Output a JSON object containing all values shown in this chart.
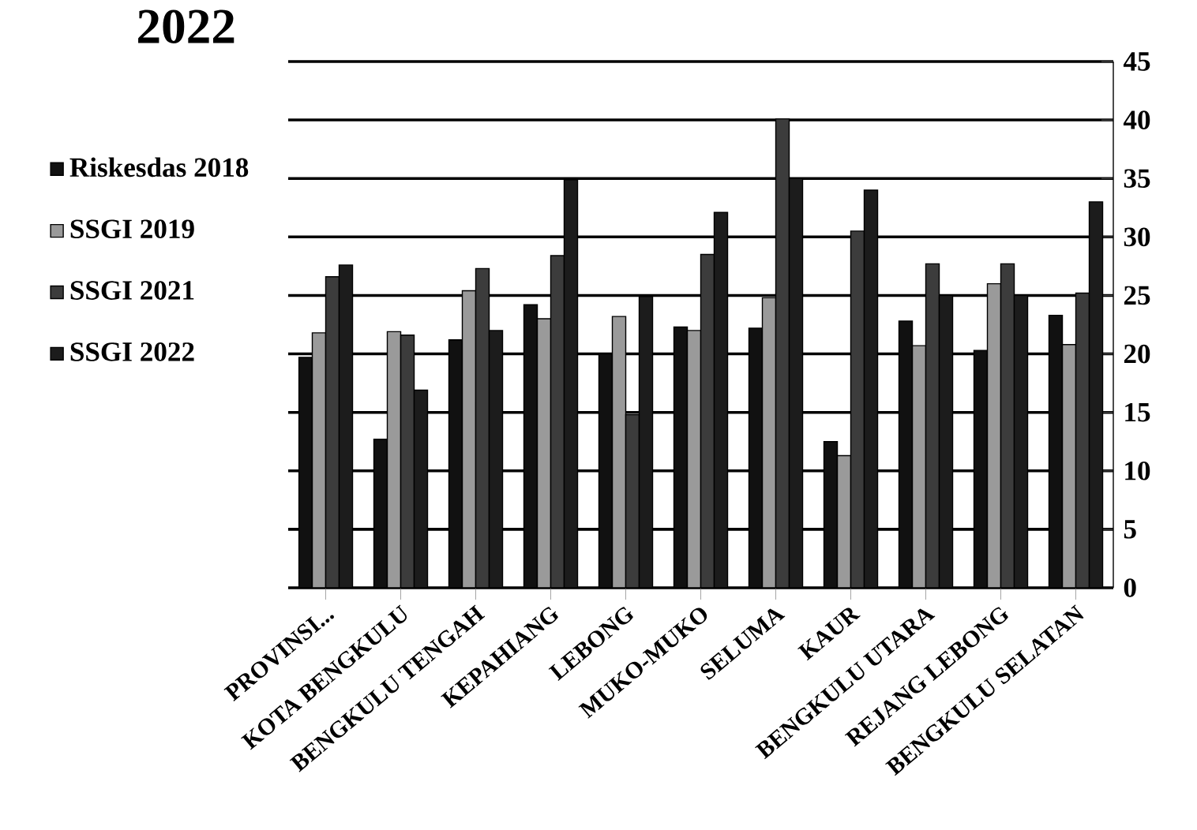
{
  "chart_data": {
    "type": "bar",
    "title": "2022",
    "categories": [
      "PROVINSI...",
      "KOTA BENGKULU",
      "BENGKULU TENGAH",
      "KEPAHIANG",
      "LEBONG",
      "MUKO-MUKO",
      "SELUMA",
      "KAUR",
      "BENGKULU UTARA",
      "REJANG LEBONG",
      "BENGKULU SELATAN"
    ],
    "series": [
      {
        "name": "Riskesdas 2018",
        "color": "#111111",
        "values": [
          19.7,
          12.7,
          21.2,
          24.2,
          20.0,
          22.3,
          22.2,
          12.5,
          22.8,
          20.3,
          23.3
        ]
      },
      {
        "name": "SSGI 2019",
        "color": "#9a9a9a",
        "values": [
          21.8,
          21.9,
          25.4,
          23.0,
          23.2,
          22.0,
          24.8,
          11.3,
          20.7,
          26.0,
          20.8
        ]
      },
      {
        "name": "SSGI 2021",
        "color": "#3c3c3c",
        "values": [
          26.6,
          21.6,
          27.3,
          28.4,
          14.8,
          28.5,
          40.1,
          30.5,
          27.7,
          27.7,
          25.2
        ]
      },
      {
        "name": "SSGI 2022",
        "color": "#1c1c1c",
        "values": [
          27.6,
          16.9,
          22.0,
          34.9,
          24.9,
          32.1,
          35.0,
          34.0,
          25.0,
          25.0,
          33.0
        ]
      }
    ],
    "ylim": [
      0,
      45
    ],
    "yticks": [
      0,
      5,
      10,
      15,
      20,
      25,
      30,
      35,
      40,
      45
    ],
    "grid": "y",
    "legend": "left"
  }
}
